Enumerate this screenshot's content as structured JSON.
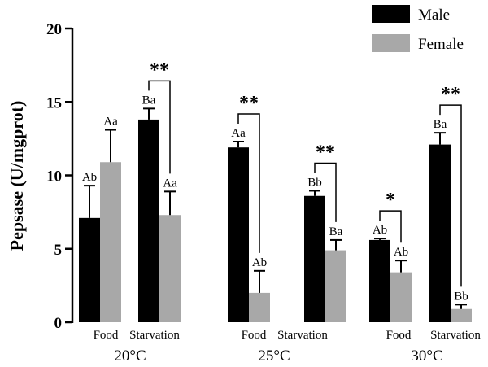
{
  "chart_data": {
    "type": "bar",
    "ylabel": "Pepsase (U/mgprot)",
    "ylim": [
      0,
      20
    ],
    "yticks": [
      0,
      5,
      10,
      15,
      20
    ],
    "groups": [
      {
        "label": "20°C",
        "categories": [
          {
            "label": "Food",
            "male": 7.1,
            "male_err": 2.2,
            "male_letter": "Ab",
            "female": 10.9,
            "female_err": 2.2,
            "female_letter": "Aa",
            "sig": ""
          },
          {
            "label": "Starvation",
            "male": 13.8,
            "male_err": 0.75,
            "male_letter": "Ba",
            "female": 7.3,
            "female_err": 1.6,
            "female_letter": "Aa",
            "sig": "**"
          }
        ]
      },
      {
        "label": "25°C",
        "categories": [
          {
            "label": "Food",
            "male": 11.9,
            "male_err": 0.4,
            "male_letter": "Aa",
            "female": 2.0,
            "female_err": 1.5,
            "female_letter": "Ab",
            "sig": "**"
          },
          {
            "label": "Starvation",
            "male": 8.6,
            "male_err": 0.35,
            "male_letter": "Bb",
            "female": 4.9,
            "female_err": 0.7,
            "female_letter": "Ba",
            "sig": "**"
          }
        ]
      },
      {
        "label": "30°C",
        "categories": [
          {
            "label": "Food",
            "male": 5.6,
            "male_err": 0.1,
            "male_letter": "Ab",
            "female": 3.4,
            "female_err": 0.8,
            "female_letter": "Ab",
            "sig": "*"
          },
          {
            "label": "Starvation",
            "male": 12.1,
            "male_err": 0.8,
            "male_letter": "Ba",
            "female": 0.9,
            "female_err": 0.3,
            "female_letter": "Bb",
            "sig": "**"
          }
        ]
      }
    ],
    "series": [
      {
        "name": "Male",
        "color": "#000000"
      },
      {
        "name": "Female",
        "color": "#a8a8a8"
      }
    ],
    "legend": "top-right",
    "grid": false
  }
}
